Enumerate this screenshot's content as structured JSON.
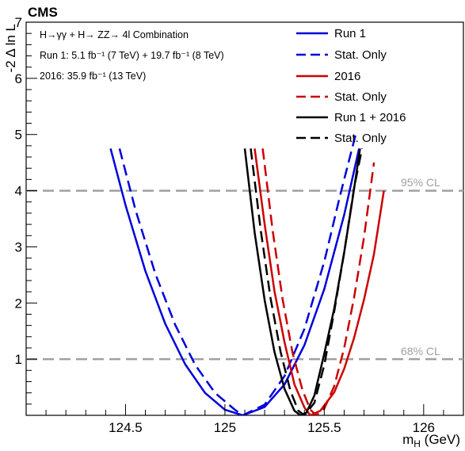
{
  "header": {
    "experiment": "CMS",
    "info_line1": "H→γγ + H→ ZZ→ 4l Combination",
    "info_line2": "Run 1: 5.1 fb⁻¹ (7 TeV) + 19.7 fb⁻¹ (8 TeV)",
    "info_line3": "2016: 35.9 fb⁻¹ (13 TeV)"
  },
  "chart_data": {
    "type": "line",
    "xlabel": "m_H (GeV)",
    "ylabel": "-2 Δ ln L",
    "xlim": [
      124.0,
      126.2
    ],
    "ylim": [
      0,
      7
    ],
    "x_ticks": [
      "124.5",
      "125",
      "125.5",
      "126"
    ],
    "x_tick_values": [
      124.5,
      125,
      125.5,
      126
    ],
    "y_ticks": [
      "1",
      "2",
      "3",
      "4",
      "5",
      "6",
      "7"
    ],
    "y_tick_values": [
      1,
      2,
      3,
      4,
      5,
      6,
      7
    ],
    "reference_lines": [
      {
        "label": "68% CL",
        "y": 1.0,
        "color": "#a0a0a0"
      },
      {
        "label": "95% CL",
        "y": 4.0,
        "color": "#a0a0a0"
      }
    ],
    "legend_position": "top-right",
    "series": [
      {
        "name": "Run 1",
        "color": "#0000dd",
        "style": "solid",
        "x": [
          124.425,
          124.5,
          124.6,
          124.7,
          124.8,
          124.9,
          125.0,
          125.09,
          125.2,
          125.3,
          125.4,
          125.5,
          125.6,
          125.675
        ],
        "y": [
          4.75,
          3.74,
          2.57,
          1.63,
          0.91,
          0.4,
          0.1,
          0.0,
          0.15,
          0.55,
          1.25,
          2.25,
          3.57,
          4.75
        ]
      },
      {
        "name": "Stat. Only",
        "color": "#0000dd",
        "style": "dashed",
        "x": [
          124.47,
          124.55,
          124.65,
          124.75,
          124.85,
          124.95,
          125.05,
          125.09,
          125.2,
          125.3,
          125.4,
          125.5,
          125.58,
          125.66
        ],
        "y": [
          4.75,
          3.66,
          2.52,
          1.61,
          0.9,
          0.4,
          0.1,
          0.0,
          0.19,
          0.7,
          1.54,
          2.74,
          3.92,
          5.03
        ]
      },
      {
        "name": "2016",
        "color": "#cc0000",
        "style": "solid",
        "x": [
          125.15,
          125.2,
          125.25,
          125.3,
          125.35,
          125.4,
          125.43,
          125.48,
          125.55,
          125.6,
          125.65,
          125.7,
          125.75,
          125.8
        ],
        "y": [
          4.75,
          3.4,
          2.2,
          1.3,
          0.55,
          0.14,
          0.0,
          0.08,
          0.41,
          0.83,
          1.38,
          2.06,
          2.87,
          4.0
        ]
      },
      {
        "name": "Stat. Only",
        "color": "#cc0000",
        "style": "dashed",
        "x": [
          125.19,
          125.24,
          125.29,
          125.34,
          125.39,
          125.43,
          125.46,
          125.5,
          125.55,
          125.6,
          125.65,
          125.7,
          125.75
        ],
        "y": [
          4.75,
          3.3,
          2.07,
          1.12,
          0.45,
          0.1,
          0.0,
          0.12,
          0.52,
          1.2,
          2.1,
          3.17,
          4.5
        ]
      },
      {
        "name": "Run 1 + 2016",
        "color": "#000000",
        "style": "solid",
        "x": [
          125.1,
          125.15,
          125.2,
          125.25,
          125.3,
          125.35,
          125.38,
          125.41,
          125.45,
          125.5,
          125.55,
          125.6,
          125.64,
          125.68
        ],
        "y": [
          4.75,
          3.25,
          2.05,
          1.12,
          0.47,
          0.08,
          0.0,
          0.05,
          0.35,
          1.1,
          1.9,
          2.9,
          3.8,
          4.75
        ]
      },
      {
        "name": "Stat. Only",
        "color": "#000000",
        "style": "dashed",
        "x": [
          125.13,
          125.18,
          125.23,
          125.28,
          125.33,
          125.37,
          125.4,
          125.45,
          125.5,
          125.55,
          125.6,
          125.65,
          125.69
        ],
        "y": [
          4.75,
          3.3,
          2.08,
          1.13,
          0.43,
          0.08,
          0.0,
          0.22,
          0.9,
          1.85,
          2.9,
          4.05,
          4.75
        ]
      }
    ]
  }
}
